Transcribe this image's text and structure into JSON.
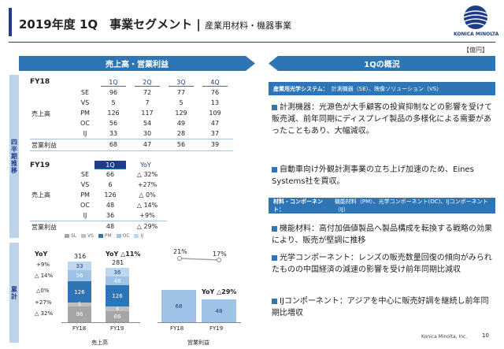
{
  "header": {
    "title": "2019年度 1Q　事業セグメント",
    "separator": "|",
    "subtitle": "産業用材料・機器事業"
  },
  "logo": {
    "brand": "KONICA MINOLTA"
  },
  "unit": "【億円】",
  "left_panel": {
    "title": "売上高・営業利益",
    "side_top": "四半期推移",
    "side_bottom": "累計"
  },
  "fy18": {
    "label": "FY18",
    "quarters": [
      "1Q",
      "2Q",
      "3Q",
      "4Q"
    ],
    "group": "売上高",
    "rows": [
      {
        "seg": "SE",
        "v": [
          "96",
          "72",
          "77",
          "76"
        ]
      },
      {
        "seg": "VS",
        "v": [
          "5",
          "7",
          "5",
          "13"
        ]
      },
      {
        "seg": "PM",
        "v": [
          "126",
          "117",
          "129",
          "109"
        ]
      },
      {
        "seg": "OC",
        "v": [
          "56",
          "54",
          "49",
          "47"
        ]
      },
      {
        "seg": "IJ",
        "v": [
          "33",
          "30",
          "28",
          "37"
        ]
      }
    ],
    "op_label": "営業利益",
    "op": [
      "68",
      "47",
      "56",
      "39"
    ]
  },
  "fy19": {
    "label": "FY19",
    "q": "1Q",
    "yoy": "YoY",
    "group": "売上高",
    "rows": [
      {
        "seg": "SE",
        "v": "66",
        "yoy": "△ 32%"
      },
      {
        "seg": "VS",
        "v": "6",
        "yoy": "+27%"
      },
      {
        "seg": "PM",
        "v": "126",
        "yoy": "△ 0%"
      },
      {
        "seg": "OC",
        "v": "48",
        "yoy": "△ 14%"
      },
      {
        "seg": "IJ",
        "v": "36",
        "yoy": "+9%"
      }
    ],
    "op_label": "営業利益",
    "op": "48",
    "op_yoy": "△ 29%"
  },
  "legend": [
    "SL",
    "VS",
    "PM",
    "OC",
    "IJ"
  ],
  "cum": {
    "yoy_left": "YoY",
    "left_yoys": [
      "+9%",
      "△ 14%",
      "△0%",
      "+27%",
      "△ 32%"
    ],
    "fy18": {
      "total": "316",
      "ij": "33",
      "oc": "56",
      "pm": "126",
      "vs": "5",
      "se": "96"
    },
    "fy19": {
      "total": "281",
      "ij": "36",
      "oc": "48",
      "pm": "126",
      "vs": "6",
      "se": "66"
    },
    "fy19_yoy": "YoY △11%",
    "x": [
      "FY18",
      "FY19"
    ],
    "group_sales": "売上高",
    "op": {
      "fy18": "68",
      "fy19": "48",
      "yoy": "YoY  △29%",
      "pct18": "21%",
      "pct19": "17%",
      "group": "営業利益"
    }
  },
  "right_panel": {
    "title": "1Qの概況",
    "s1_head": "産業用光学システム：",
    "s1_sub": "計測機器（SE）、映像ソリューション（VS）",
    "b1": "計測機器：光源色が大手顧客の投資抑制などの影響を受けて販売減、前年同期にディスプレイ製品の多様化による需要があったこともあり、大幅減収。",
    "b2": "自動車向け外観計測事業の立ち上げ加速のため、Eines Systems社を買収。",
    "s2_head": "材料・コンポーネント：",
    "s2_sub": "機能材料（PM）、光学コンポーネント(OC)、IJコンポーネント（IJ）",
    "b3": "機能材料：高付加価値製品へ製品構成を転換する戦略の効果により、販売が堅調に推移",
    "b4": "光学コンポーネント：レンズの販売数量回復の傾向がみられたものの中国経済の減速の影響を受け前年同期比減収",
    "b5": "IJコンポーネント：アジアを中心に販売好調を継続し前年同期比増収"
  },
  "footer": {
    "company": "Konica Minolta, Inc.",
    "page": "10"
  },
  "colors": {
    "accent": "#2e75b6",
    "dark": "#1f3c88",
    "se": "#a6a6a6",
    "vs": "#bfbfbf",
    "pm": "#2e75b6",
    "oc": "#9dc3e6",
    "ij": "#bdd7ee",
    "op": "#9dc3e6"
  }
}
